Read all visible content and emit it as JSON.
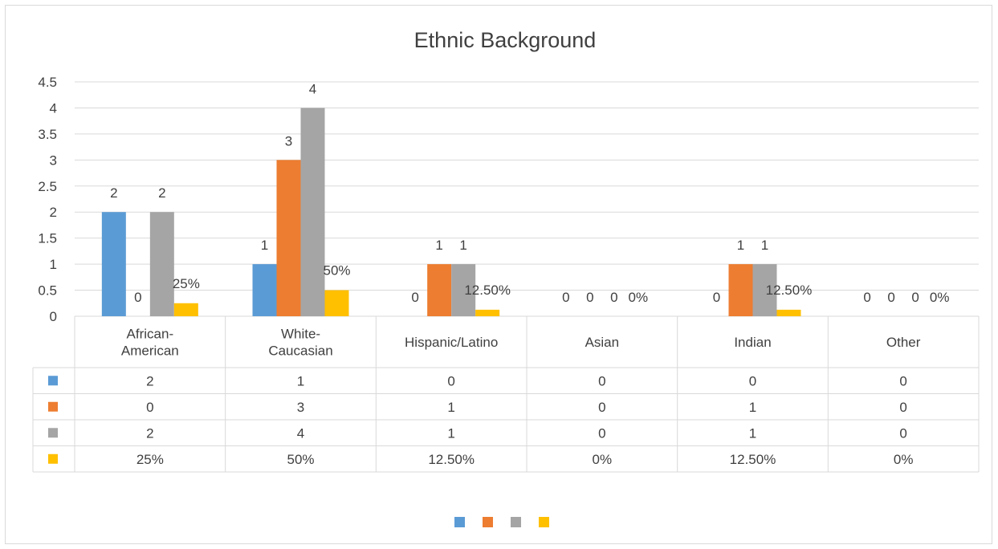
{
  "colors": {
    "series": [
      "#5b9bd5",
      "#ed7d31",
      "#a5a5a5",
      "#ffc000"
    ],
    "gridline": "#d9d9d9",
    "text": "#404040"
  },
  "chart_data": {
    "type": "bar",
    "title": "Ethnic Background",
    "xlabel": "",
    "ylabel": "",
    "ylim": [
      0,
      4.5
    ],
    "yticks": [
      "0",
      "0.5",
      "1",
      "1.5",
      "2",
      "2.5",
      "3",
      "3.5",
      "4",
      "4.5"
    ],
    "grid": true,
    "legend": "bottom",
    "categories": [
      "African-American",
      "White-Caucasian",
      "Hispanic/Latino",
      "Asian",
      "Indian",
      "Other"
    ],
    "category_label_lines": [
      [
        "African-",
        "American"
      ],
      [
        "White-",
        "Caucasian"
      ],
      [
        "Hispanic/Latino"
      ],
      [
        "Asian"
      ],
      [
        "Indian"
      ],
      [
        "Other"
      ]
    ],
    "series": [
      {
        "values": [
          2,
          1,
          0,
          0,
          0,
          0
        ],
        "labels": [
          "2",
          "1",
          "0",
          "0",
          "0",
          "0"
        ]
      },
      {
        "values": [
          0,
          3,
          1,
          0,
          1,
          0
        ],
        "labels": [
          "0",
          "3",
          "1",
          "0",
          "1",
          "0"
        ]
      },
      {
        "values": [
          2,
          4,
          1,
          0,
          1,
          0
        ],
        "labels": [
          "2",
          "4",
          "1",
          "0",
          "1",
          "0"
        ]
      },
      {
        "values": [
          0.25,
          0.5,
          0.125,
          0,
          0.125,
          0
        ],
        "labels": [
          "25%",
          "50%",
          "12.50%",
          "0%",
          "12.50%",
          "0%"
        ]
      }
    ],
    "data_table": true
  }
}
